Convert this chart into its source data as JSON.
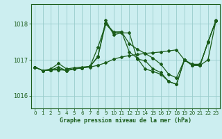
{
  "title": "Graphe pression niveau de la mer (hPa)",
  "background_color": "#cceef0",
  "grid_color": "#99cccc",
  "line_color": "#1a5c1a",
  "xlim": [
    -0.5,
    23.5
  ],
  "ylim": [
    1015.65,
    1018.55
  ],
  "yticks": [
    1016,
    1017,
    1018
  ],
  "xticks": [
    0,
    1,
    2,
    3,
    4,
    5,
    6,
    7,
    8,
    9,
    10,
    11,
    12,
    13,
    14,
    15,
    16,
    17,
    18,
    19,
    20,
    21,
    22,
    23
  ],
  "series": [
    {
      "x": [
        0,
        1,
        2,
        3,
        4,
        5,
        6,
        7,
        8,
        9,
        10,
        11,
        12,
        13,
        14,
        15,
        16,
        17,
        18,
        19,
        20,
        21,
        22,
        23
      ],
      "y": [
        1016.8,
        1016.7,
        1016.75,
        1016.9,
        1016.75,
        1016.78,
        1016.8,
        1016.82,
        1017.1,
        1018.02,
        1017.78,
        1017.78,
        1017.22,
        1017.05,
        1016.75,
        1016.68,
        1016.6,
        1016.4,
        1016.32,
        1017.0,
        1016.85,
        1016.85,
        1017.5,
        1018.08
      ]
    },
    {
      "x": [
        0,
        1,
        2,
        3,
        4,
        5,
        6,
        7,
        8,
        9,
        10,
        11,
        12,
        13,
        14,
        15,
        16,
        17,
        18,
        19,
        20,
        21,
        22,
        23
      ],
      "y": [
        1016.8,
        1016.7,
        1016.72,
        1016.72,
        1016.72,
        1016.75,
        1016.78,
        1016.8,
        1016.85,
        1016.92,
        1017.02,
        1017.08,
        1017.12,
        1017.15,
        1017.18,
        1017.2,
        1017.22,
        1017.25,
        1017.28,
        1017.0,
        1016.85,
        1016.85,
        1017.0,
        1018.08
      ]
    },
    {
      "x": [
        0,
        1,
        2,
        3,
        4,
        5,
        6,
        7,
        8,
        9,
        10,
        11,
        12,
        13,
        14,
        15,
        16,
        17,
        18,
        19,
        20,
        21,
        22,
        23
      ],
      "y": [
        1016.8,
        1016.7,
        1016.72,
        1016.75,
        1016.7,
        1016.75,
        1016.78,
        1016.82,
        1017.35,
        1018.0,
        1017.75,
        1017.78,
        1017.45,
        1017.3,
        1017.18,
        1017.05,
        1016.88,
        1016.6,
        1016.5,
        1017.0,
        1016.88,
        1016.88,
        1017.48,
        1018.1
      ]
    },
    {
      "x": [
        0,
        1,
        2,
        3,
        4,
        5,
        6,
        7,
        8,
        9,
        10,
        11,
        12,
        13,
        14,
        15,
        16,
        17,
        18,
        19,
        20,
        21,
        22,
        23
      ],
      "y": [
        1016.8,
        1016.7,
        1016.72,
        1016.8,
        1016.7,
        1016.75,
        1016.78,
        1016.82,
        1017.08,
        1018.1,
        1017.7,
        1017.75,
        1017.75,
        1017.02,
        1016.98,
        1016.75,
        1016.65,
        1016.4,
        1016.32,
        1017.0,
        1016.85,
        1016.85,
        1017.5,
        1018.08
      ]
    }
  ]
}
